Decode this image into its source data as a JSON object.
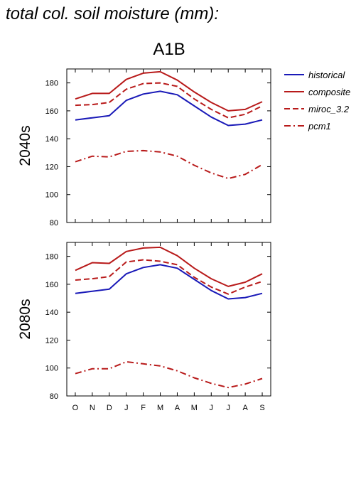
{
  "figure": {
    "title": "total col. soil moisture (mm):",
    "scenario": "A1B"
  },
  "legend": [
    {
      "key": "historical",
      "label": "historical",
      "color": "#1a1ab8",
      "dash": "none"
    },
    {
      "key": "composite",
      "label": "composite",
      "color": "#b81a1a",
      "dash": "none"
    },
    {
      "key": "miroc",
      "label": "miroc_3.2",
      "color": "#b81a1a",
      "dash": "8,4"
    },
    {
      "key": "pcm1",
      "label": "pcm1",
      "color": "#b81a1a",
      "dash": "9,4,2,4"
    }
  ],
  "chart_data": [
    {
      "type": "line",
      "panel_label": "2040s",
      "categories": [
        "O",
        "N",
        "D",
        "J",
        "F",
        "M",
        "A",
        "M",
        "J",
        "J",
        "A",
        "S"
      ],
      "ylim": [
        80,
        190
      ],
      "yticks": [
        80,
        100,
        120,
        140,
        160,
        180
      ],
      "series": [
        {
          "name": "historical",
          "values": [
            153.5,
            155.0,
            156.5,
            167.5,
            172.0,
            174.0,
            171.5,
            163.5,
            155.5,
            149.5,
            150.5,
            153.5
          ]
        },
        {
          "name": "composite",
          "values": [
            168.5,
            172.5,
            172.5,
            182.5,
            187.0,
            188.0,
            182.0,
            173.5,
            166.0,
            160.0,
            161.0,
            166.5
          ]
        },
        {
          "name": "miroc_3.2",
          "values": [
            164.0,
            164.5,
            166.0,
            175.5,
            179.5,
            180.0,
            177.5,
            168.5,
            161.0,
            155.0,
            157.5,
            163.5
          ]
        },
        {
          "name": "pcm1",
          "values": [
            123.5,
            127.5,
            127.0,
            131.0,
            131.5,
            130.5,
            127.5,
            121.0,
            115.5,
            111.5,
            114.5,
            121.5
          ]
        }
      ]
    },
    {
      "type": "line",
      "panel_label": "2080s",
      "categories": [
        "O",
        "N",
        "D",
        "J",
        "F",
        "M",
        "A",
        "M",
        "J",
        "J",
        "A",
        "S"
      ],
      "ylim": [
        80,
        190
      ],
      "yticks": [
        80,
        100,
        120,
        140,
        160,
        180
      ],
      "series": [
        {
          "name": "historical",
          "values": [
            153.5,
            155.0,
            156.5,
            167.5,
            172.0,
            174.0,
            171.5,
            163.5,
            155.5,
            149.5,
            150.5,
            153.5
          ]
        },
        {
          "name": "composite",
          "values": [
            170.0,
            175.5,
            175.0,
            183.5,
            186.0,
            186.5,
            180.5,
            171.5,
            164.0,
            158.5,
            161.5,
            167.5
          ]
        },
        {
          "name": "miroc_3.2",
          "values": [
            163.0,
            164.0,
            165.5,
            176.0,
            177.5,
            176.5,
            174.0,
            165.0,
            158.0,
            153.0,
            158.0,
            162.0
          ]
        },
        {
          "name": "pcm1",
          "values": [
            96.0,
            99.5,
            99.5,
            104.5,
            103.0,
            101.5,
            98.0,
            93.0,
            89.0,
            86.0,
            88.5,
            92.5
          ]
        }
      ]
    }
  ]
}
